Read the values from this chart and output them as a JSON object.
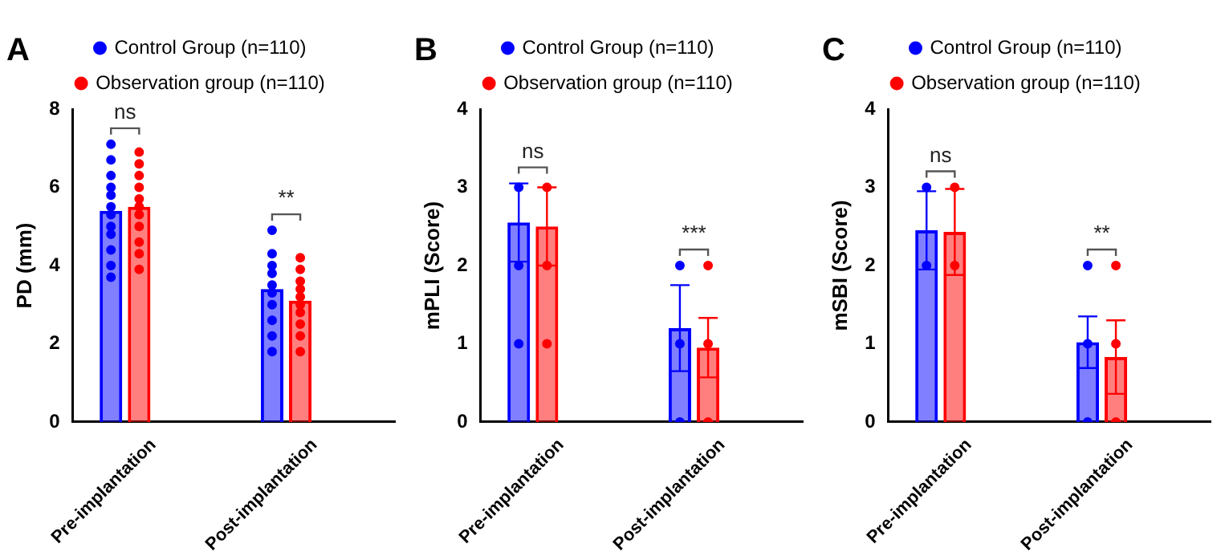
{
  "chart_data": [
    {
      "type": "bar",
      "title": "A",
      "ylabel": "PD (mm)",
      "categories": [
        "Pre-implantation",
        "Post-implantation"
      ],
      "ylim": [
        0,
        8
      ],
      "yticks": [
        0,
        2,
        4,
        6,
        8
      ],
      "grid": false,
      "legend": "top",
      "marker": "circle",
      "series": [
        {
          "name": "Control Group (n=110)",
          "color": "#0000ff",
          "values": [
            5.4,
            3.4
          ]
        },
        {
          "name": "Observation group (n=110)",
          "color": "#ff0000",
          "values": [
            5.5,
            3.1
          ]
        },
        {
          "type": "scatter",
          "color": "#0000ff",
          "x": [
            "Pre-implantation",
            "Pre-implantation",
            "Pre-implantation",
            "Pre-implantation",
            "Pre-implantation",
            "Pre-implantation",
            "Pre-implantation",
            "Pre-implantation",
            "Pre-implantation",
            "Pre-implantation",
            "Pre-implantation",
            "Pre-implantation",
            "Post-implantation",
            "Post-implantation",
            "Post-implantation",
            "Post-implantation",
            "Post-implantation",
            "Post-implantation",
            "Post-implantation",
            "Post-implantation",
            "Post-implantation",
            "Post-implantation"
          ],
          "values": [
            3.7,
            4.0,
            4.4,
            4.8,
            5.0,
            5.3,
            5.5,
            5.8,
            6.0,
            6.3,
            6.7,
            7.1,
            1.8,
            2.2,
            2.6,
            3.0,
            3.3,
            3.5,
            3.8,
            4.0,
            4.3,
            4.9
          ]
        },
        {
          "type": "scatter",
          "color": "#ff0000",
          "x": [
            "Pre-implantation",
            "Pre-implantation",
            "Pre-implantation",
            "Pre-implantation",
            "Pre-implantation",
            "Pre-implantation",
            "Pre-implantation",
            "Pre-implantation",
            "Pre-implantation",
            "Pre-implantation",
            "Pre-implantation",
            "Post-implantation",
            "Post-implantation",
            "Post-implantation",
            "Post-implantation",
            "Post-implantation",
            "Post-implantation",
            "Post-implantation",
            "Post-implantation",
            "Post-implantation",
            "Post-implantation"
          ],
          "values": [
            3.9,
            4.3,
            4.6,
            5.0,
            5.3,
            5.5,
            5.7,
            6.0,
            6.3,
            6.6,
            6.9,
            1.8,
            2.2,
            2.5,
            2.8,
            3.0,
            3.2,
            3.4,
            3.6,
            3.9,
            4.2
          ]
        }
      ],
      "annotations": [
        "ns",
        "**"
      ]
    },
    {
      "type": "bar",
      "title": "B",
      "ylabel": "mPLI (Score)",
      "categories": [
        "Pre-implantation",
        "Post-implantation"
      ],
      "ylim": [
        0,
        4
      ],
      "yticks": [
        0,
        1,
        2,
        3,
        4
      ],
      "grid": false,
      "legend": "top",
      "marker": "circle",
      "series": [
        {
          "name": "Control Group (n=110)",
          "color": "#0000ff",
          "values": [
            2.55,
            1.2
          ],
          "errors": [
            0.5,
            0.55
          ]
        },
        {
          "name": "Observation group (n=110)",
          "color": "#ff0000",
          "values": [
            2.5,
            0.95
          ],
          "errors": [
            0.5,
            0.38
          ]
        },
        {
          "type": "scatter",
          "color": "#0000ff",
          "x": [
            "Pre-implantation",
            "Pre-implantation",
            "Pre-implantation",
            "Post-implantation",
            "Post-implantation",
            "Post-implantation"
          ],
          "values": [
            3,
            2,
            1,
            2,
            1,
            0
          ]
        },
        {
          "type": "scatter",
          "color": "#ff0000",
          "x": [
            "Pre-implantation",
            "Pre-implantation",
            "Pre-implantation",
            "Post-implantation",
            "Post-implantation",
            "Post-implantation"
          ],
          "values": [
            3,
            2,
            1,
            2,
            1,
            0
          ]
        }
      ],
      "annotations": [
        "ns",
        "***"
      ]
    },
    {
      "type": "bar",
      "title": "C",
      "ylabel": "mSBI (Score)",
      "categories": [
        "Pre-implantation",
        "Post-implantation"
      ],
      "ylim": [
        0,
        4
      ],
      "yticks": [
        0,
        1,
        2,
        3,
        4
      ],
      "grid": false,
      "legend": "top",
      "marker": "circle",
      "series": [
        {
          "name": "Control Group (n=110)",
          "color": "#0000ff",
          "values": [
            2.45,
            1.02
          ],
          "errors": [
            0.5,
            0.33
          ]
        },
        {
          "name": "Observation group (n=110)",
          "color": "#ff0000",
          "values": [
            2.43,
            0.83
          ],
          "errors": [
            0.55,
            0.47
          ]
        },
        {
          "type": "scatter",
          "color": "#0000ff",
          "x": [
            "Pre-implantation",
            "Pre-implantation",
            "Post-implantation",
            "Post-implantation",
            "Post-implantation"
          ],
          "values": [
            3,
            2,
            2,
            1,
            0
          ]
        },
        {
          "type": "scatter",
          "color": "#ff0000",
          "x": [
            "Pre-implantation",
            "Pre-implantation",
            "Post-implantation",
            "Post-implantation",
            "Post-implantation"
          ],
          "values": [
            3,
            2,
            2,
            1,
            0
          ]
        }
      ],
      "annotations": [
        "ns",
        "**"
      ]
    }
  ]
}
